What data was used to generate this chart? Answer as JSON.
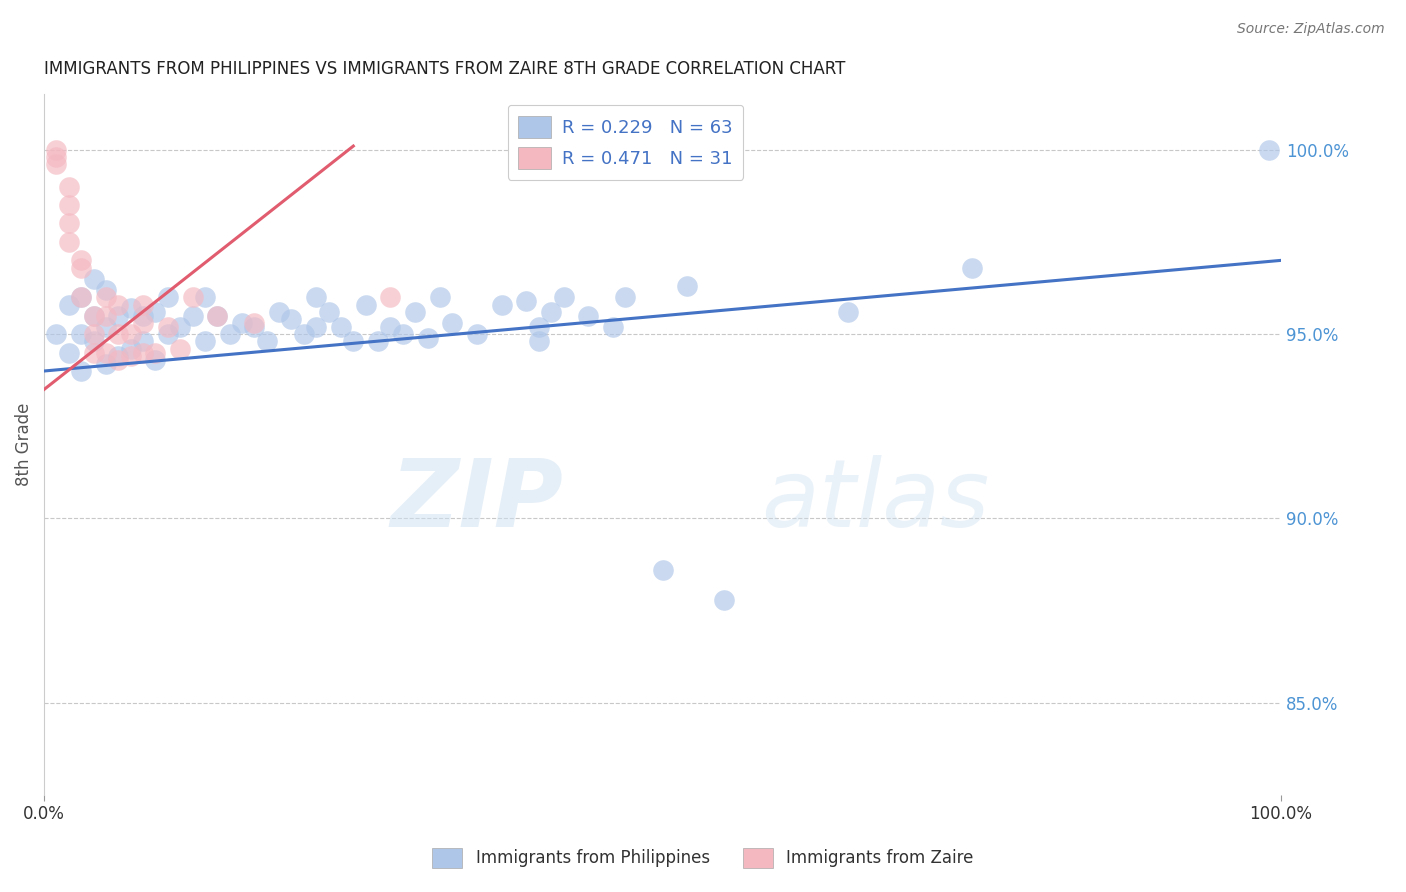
{
  "title": "IMMIGRANTS FROM PHILIPPINES VS IMMIGRANTS FROM ZAIRE 8TH GRADE CORRELATION CHART",
  "source": "Source: ZipAtlas.com",
  "ylabel": "8th Grade",
  "xlim": [
    0.0,
    1.0
  ],
  "ylim": [
    0.825,
    1.015
  ],
  "ytick_labels": [
    "85.0%",
    "90.0%",
    "95.0%",
    "100.0%"
  ],
  "ytick_values": [
    0.85,
    0.9,
    0.95,
    1.0
  ],
  "xtick_labels": [
    "0.0%",
    "100.0%"
  ],
  "xtick_values": [
    0.0,
    1.0
  ],
  "legend_entries": [
    {
      "label": "R = 0.229   N = 63",
      "color": "#aec6e8"
    },
    {
      "label": "R = 0.471   N = 31",
      "color": "#f4b8c1"
    }
  ],
  "blue_scatter_x": [
    0.01,
    0.02,
    0.02,
    0.03,
    0.03,
    0.03,
    0.04,
    0.04,
    0.04,
    0.05,
    0.05,
    0.05,
    0.06,
    0.06,
    0.07,
    0.07,
    0.08,
    0.08,
    0.09,
    0.09,
    0.1,
    0.1,
    0.11,
    0.12,
    0.13,
    0.13,
    0.14,
    0.15,
    0.16,
    0.17,
    0.18,
    0.19,
    0.2,
    0.21,
    0.22,
    0.22,
    0.23,
    0.24,
    0.25,
    0.26,
    0.27,
    0.28,
    0.29,
    0.3,
    0.31,
    0.32,
    0.33,
    0.35,
    0.37,
    0.39,
    0.4,
    0.4,
    0.41,
    0.42,
    0.44,
    0.46,
    0.47,
    0.5,
    0.52,
    0.55,
    0.65,
    0.75,
    0.99
  ],
  "blue_scatter_y": [
    0.95,
    0.945,
    0.958,
    0.94,
    0.95,
    0.96,
    0.948,
    0.955,
    0.965,
    0.942,
    0.952,
    0.962,
    0.944,
    0.955,
    0.946,
    0.957,
    0.948,
    0.955,
    0.943,
    0.956,
    0.95,
    0.96,
    0.952,
    0.955,
    0.96,
    0.948,
    0.955,
    0.95,
    0.953,
    0.952,
    0.948,
    0.956,
    0.954,
    0.95,
    0.96,
    0.952,
    0.956,
    0.952,
    0.948,
    0.958,
    0.948,
    0.952,
    0.95,
    0.956,
    0.949,
    0.96,
    0.953,
    0.95,
    0.958,
    0.959,
    0.948,
    0.952,
    0.956,
    0.96,
    0.955,
    0.952,
    0.96,
    0.886,
    0.963,
    0.878,
    0.956,
    0.968,
    1.0
  ],
  "pink_scatter_x": [
    0.01,
    0.01,
    0.01,
    0.02,
    0.02,
    0.02,
    0.02,
    0.03,
    0.03,
    0.03,
    0.04,
    0.04,
    0.04,
    0.05,
    0.05,
    0.05,
    0.06,
    0.06,
    0.06,
    0.07,
    0.07,
    0.08,
    0.08,
    0.08,
    0.09,
    0.1,
    0.11,
    0.12,
    0.14,
    0.17,
    0.28
  ],
  "pink_scatter_y": [
    1.0,
    0.998,
    0.996,
    0.99,
    0.985,
    0.98,
    0.975,
    0.97,
    0.968,
    0.96,
    0.955,
    0.95,
    0.945,
    0.96,
    0.955,
    0.945,
    0.958,
    0.95,
    0.943,
    0.95,
    0.944,
    0.958,
    0.953,
    0.945,
    0.945,
    0.952,
    0.946,
    0.96,
    0.955,
    0.953,
    0.96
  ],
  "blue_line_x": [
    0.0,
    1.0
  ],
  "blue_line_y": [
    0.94,
    0.97
  ],
  "pink_line_x": [
    0.0,
    0.25
  ],
  "pink_line_y": [
    0.935,
    1.001
  ],
  "blue_color": "#aec6e8",
  "pink_color": "#f4b8c1",
  "blue_line_color": "#4472c4",
  "pink_line_color": "#e05c6e",
  "watermark_zip": "ZIP",
  "watermark_atlas": "atlas",
  "background_color": "#ffffff",
  "grid_color": "#c8c8c8",
  "title_color": "#222222",
  "legend_text_color": "#4472c4",
  "ytick_color": "#4d94d4",
  "xtick_color": "#333333"
}
